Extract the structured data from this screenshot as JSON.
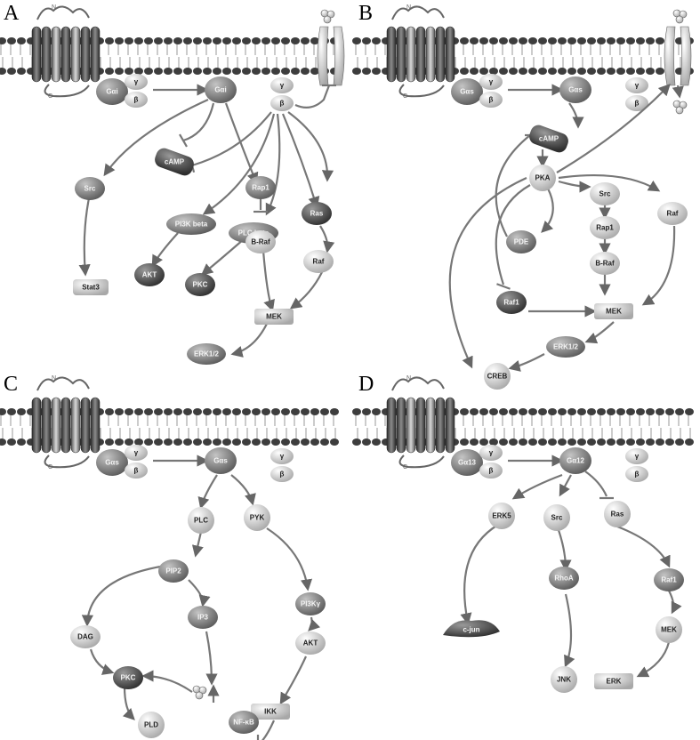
{
  "panels": [
    {
      "label": "A",
      "galpha": "Gαi",
      "alpha": "Gαi",
      "beta": "β",
      "gamma": "γ",
      "membrane_channel": "Ca2+"
    },
    {
      "label": "B",
      "galpha": "Gαs",
      "alpha": "Gαs",
      "beta": "β",
      "gamma": "γ"
    },
    {
      "label": "C",
      "galpha": "Gαs",
      "alpha": "Gαs",
      "beta": "β",
      "gamma": "γ"
    },
    {
      "label": "D",
      "galpha": "Gα13",
      "alpha": "Gα12",
      "beta": "β",
      "gamma": "γ"
    }
  ],
  "receptor": {
    "n_term": "N",
    "c_term": "C"
  },
  "nodes": {
    "a_camp": "cAMP",
    "a_src": "Src",
    "a_rap1": "Rap1",
    "a_ras": "Ras",
    "a_pi3k": "PI3K beta",
    "a_plc": "PLC beta",
    "a_braf": "B-Raf",
    "a_raf": "Raf",
    "a_akt": "AKT",
    "a_pkc": "PKC",
    "a_stat3": "Stat3",
    "a_mek": "MEK",
    "a_erk": "ERK1/2",
    "b_camp": "cAMP",
    "b_pka": "PKA",
    "b_src": "Src",
    "b_raf": "Raf",
    "b_pde": "PDE",
    "b_rap1": "Rap1",
    "b_braf": "B-Raf",
    "b_raf1": "Raf1",
    "b_mek": "MEK",
    "b_creb": "CREB",
    "b_erk": "ERK1/2",
    "c_plc": "PLC",
    "c_pyk": "PYK",
    "c_pip2": "PIP2",
    "c_pi3k": "PI3Kγ",
    "c_ip3": "IP3",
    "c_dag": "DAG",
    "c_akt": "AKT",
    "c_pkc": "PKC",
    "c_ca": "Ca2+",
    "c_ikk": "IKK",
    "c_pld": "PLD",
    "c_nfkb": "NF-κB",
    "d_erk5": "ERK5",
    "d_src": "Src",
    "d_ras": "Ras",
    "d_rhoa": "RhoA",
    "d_raf1": "Raf1",
    "d_cjun": "c-jun",
    "d_mek": "MEK",
    "d_jnk": "JNK",
    "d_erk": "ERK"
  }
}
